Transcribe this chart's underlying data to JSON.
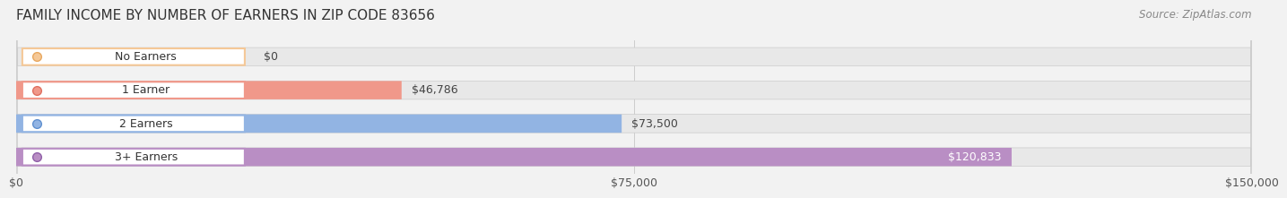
{
  "title": "FAMILY INCOME BY NUMBER OF EARNERS IN ZIP CODE 83656",
  "source": "Source: ZipAtlas.com",
  "categories": [
    "No Earners",
    "1 Earner",
    "2 Earners",
    "3+ Earners"
  ],
  "values": [
    0,
    46786,
    73500,
    120833
  ],
  "labels": [
    "$0",
    "$46,786",
    "$73,500",
    "$120,833"
  ],
  "bar_colors": [
    "#f5c897",
    "#f0988a",
    "#92b4e3",
    "#b98ec4"
  ],
  "bar_edge_colors": [
    "#e8a860",
    "#e07060",
    "#6090d0",
    "#9060a8"
  ],
  "xlim": [
    0,
    150000
  ],
  "xticks": [
    0,
    75000,
    150000
  ],
  "xtick_labels": [
    "$0",
    "$75,000",
    "$150,000"
  ],
  "bg_color": "#f2f2f2",
  "bar_bg_color": "#e8e8e8",
  "title_fontsize": 11,
  "source_fontsize": 8.5,
  "label_fontsize": 9,
  "tick_fontsize": 9,
  "category_fontsize": 9,
  "bar_height": 0.55,
  "fig_width": 14.06,
  "fig_height": 2.33
}
